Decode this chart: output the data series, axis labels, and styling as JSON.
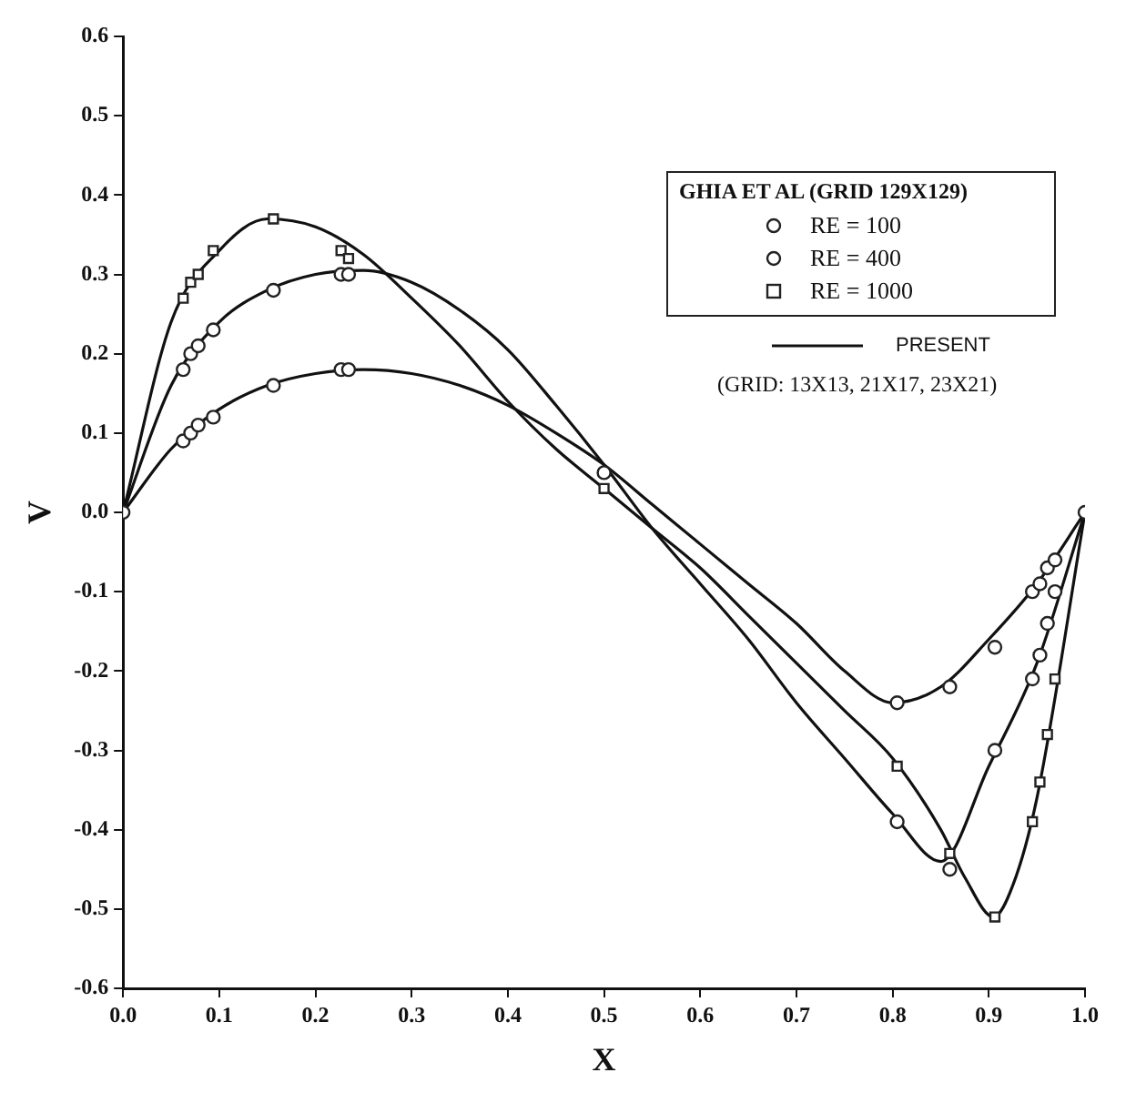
{
  "chart_data": {
    "type": "scatter",
    "xlabel": "X",
    "ylabel": "V",
    "legend_title": "GHIA ET AL (GRID 129X129)",
    "legend": "top right",
    "annotations": [
      "(GRID: 13X13, 21X17, 23X21)"
    ],
    "xlim": [
      0,
      1
    ],
    "xticks": [
      {
        "value": 0,
        "label": "0.0"
      },
      0.1,
      0.2,
      0.3,
      0.4,
      0.5,
      0.6,
      0.7,
      0.8,
      0.9,
      {
        "value": 1,
        "label": "1.0"
      }
    ],
    "ylim": [
      -0.6,
      0.6
    ],
    "yticks": [
      -0.6,
      -0.5,
      -0.4,
      -0.3,
      -0.2,
      -0.1,
      {
        "value": 0,
        "label": "0.0"
      },
      0.1,
      0.2,
      0.3,
      0.4,
      0.5,
      0.6
    ],
    "grid": false,
    "series": [
      {
        "name": "RE = 100",
        "type": "scatter",
        "marker": "circle",
        "color": "#222222",
        "x": [
          0,
          0.0625,
          0.0703,
          0.0781,
          0.0938,
          0.1563,
          0.2266,
          0.2344,
          0.5,
          0.8047,
          0.8594,
          0.9063,
          0.9453,
          0.9531,
          0.9609,
          0.9688,
          1
        ],
        "values": [
          0,
          0.09,
          0.1,
          0.11,
          0.12,
          0.16,
          0.18,
          0.18,
          0.05,
          -0.24,
          -0.22,
          -0.17,
          -0.1,
          -0.09,
          -0.07,
          -0.06,
          0
        ]
      },
      {
        "name": "RE = 400",
        "type": "scatter",
        "marker": "circle",
        "color": "#222222",
        "x": [
          0.0625,
          0.0703,
          0.0781,
          0.0938,
          0.1563,
          0.2266,
          0.2344,
          0.8047,
          0.8594,
          0.9063,
          0.9453,
          0.9531,
          0.9609,
          0.9688
        ],
        "values": [
          0.18,
          0.2,
          0.21,
          0.23,
          0.28,
          0.3,
          0.3,
          -0.39,
          -0.45,
          -0.3,
          -0.21,
          -0.18,
          -0.14,
          -0.1
        ]
      },
      {
        "name": "RE = 1000",
        "type": "scatter",
        "marker": "square",
        "color": "#222222",
        "x": [
          0.0625,
          0.0703,
          0.0781,
          0.0938,
          0.1563,
          0.2266,
          0.2344,
          0.5,
          0.8047,
          0.8594,
          0.9063,
          0.9453,
          0.9531,
          0.9609,
          0.9688
        ],
        "values": [
          0.27,
          0.29,
          0.3,
          0.33,
          0.37,
          0.33,
          0.32,
          0.03,
          -0.32,
          -0.43,
          -0.51,
          -0.39,
          -0.34,
          -0.28,
          -0.21
        ]
      },
      {
        "name": "PRESENT",
        "type": "line",
        "marker": "none",
        "color": "#111111",
        "x": [
          0,
          0.05,
          0.1,
          0.15,
          0.2,
          0.25,
          0.3,
          0.35,
          0.4,
          0.45,
          0.5,
          0.55,
          0.6,
          0.65,
          0.7,
          0.75,
          0.8,
          0.85,
          0.9,
          0.95,
          1
        ],
        "values": [
          0,
          0.08,
          0.13,
          0.16,
          0.175,
          0.18,
          0.175,
          0.16,
          0.135,
          0.1,
          0.06,
          0.01,
          -0.04,
          -0.09,
          -0.14,
          -0.2,
          -0.24,
          -0.22,
          -0.16,
          -0.09,
          0
        ]
      },
      {
        "type": "line",
        "marker": "none",
        "color": "#111111",
        "x": [
          0,
          0.05,
          0.1,
          0.15,
          0.2,
          0.25,
          0.3,
          0.35,
          0.4,
          0.45,
          0.5,
          0.55,
          0.6,
          0.65,
          0.7,
          0.75,
          0.8,
          0.85,
          0.9,
          0.95,
          1
        ],
        "values": [
          0,
          0.16,
          0.24,
          0.28,
          0.3,
          0.305,
          0.29,
          0.255,
          0.205,
          0.135,
          0.06,
          -0.02,
          -0.09,
          -0.16,
          -0.24,
          -0.31,
          -0.38,
          -0.44,
          -0.32,
          -0.19,
          0
        ]
      },
      {
        "type": "line",
        "marker": "none",
        "color": "#111111",
        "x": [
          0,
          0.05,
          0.1,
          0.15,
          0.2,
          0.25,
          0.3,
          0.35,
          0.4,
          0.45,
          0.5,
          0.55,
          0.6,
          0.65,
          0.7,
          0.75,
          0.8,
          0.85,
          0.875,
          0.905,
          0.925,
          0.95,
          1
        ],
        "values": [
          0,
          0.24,
          0.33,
          0.37,
          0.36,
          0.325,
          0.27,
          0.21,
          0.14,
          0.08,
          0.03,
          -0.02,
          -0.07,
          -0.13,
          -0.19,
          -0.25,
          -0.31,
          -0.4,
          -0.46,
          -0.51,
          -0.47,
          -0.36,
          0
        ]
      }
    ]
  }
}
